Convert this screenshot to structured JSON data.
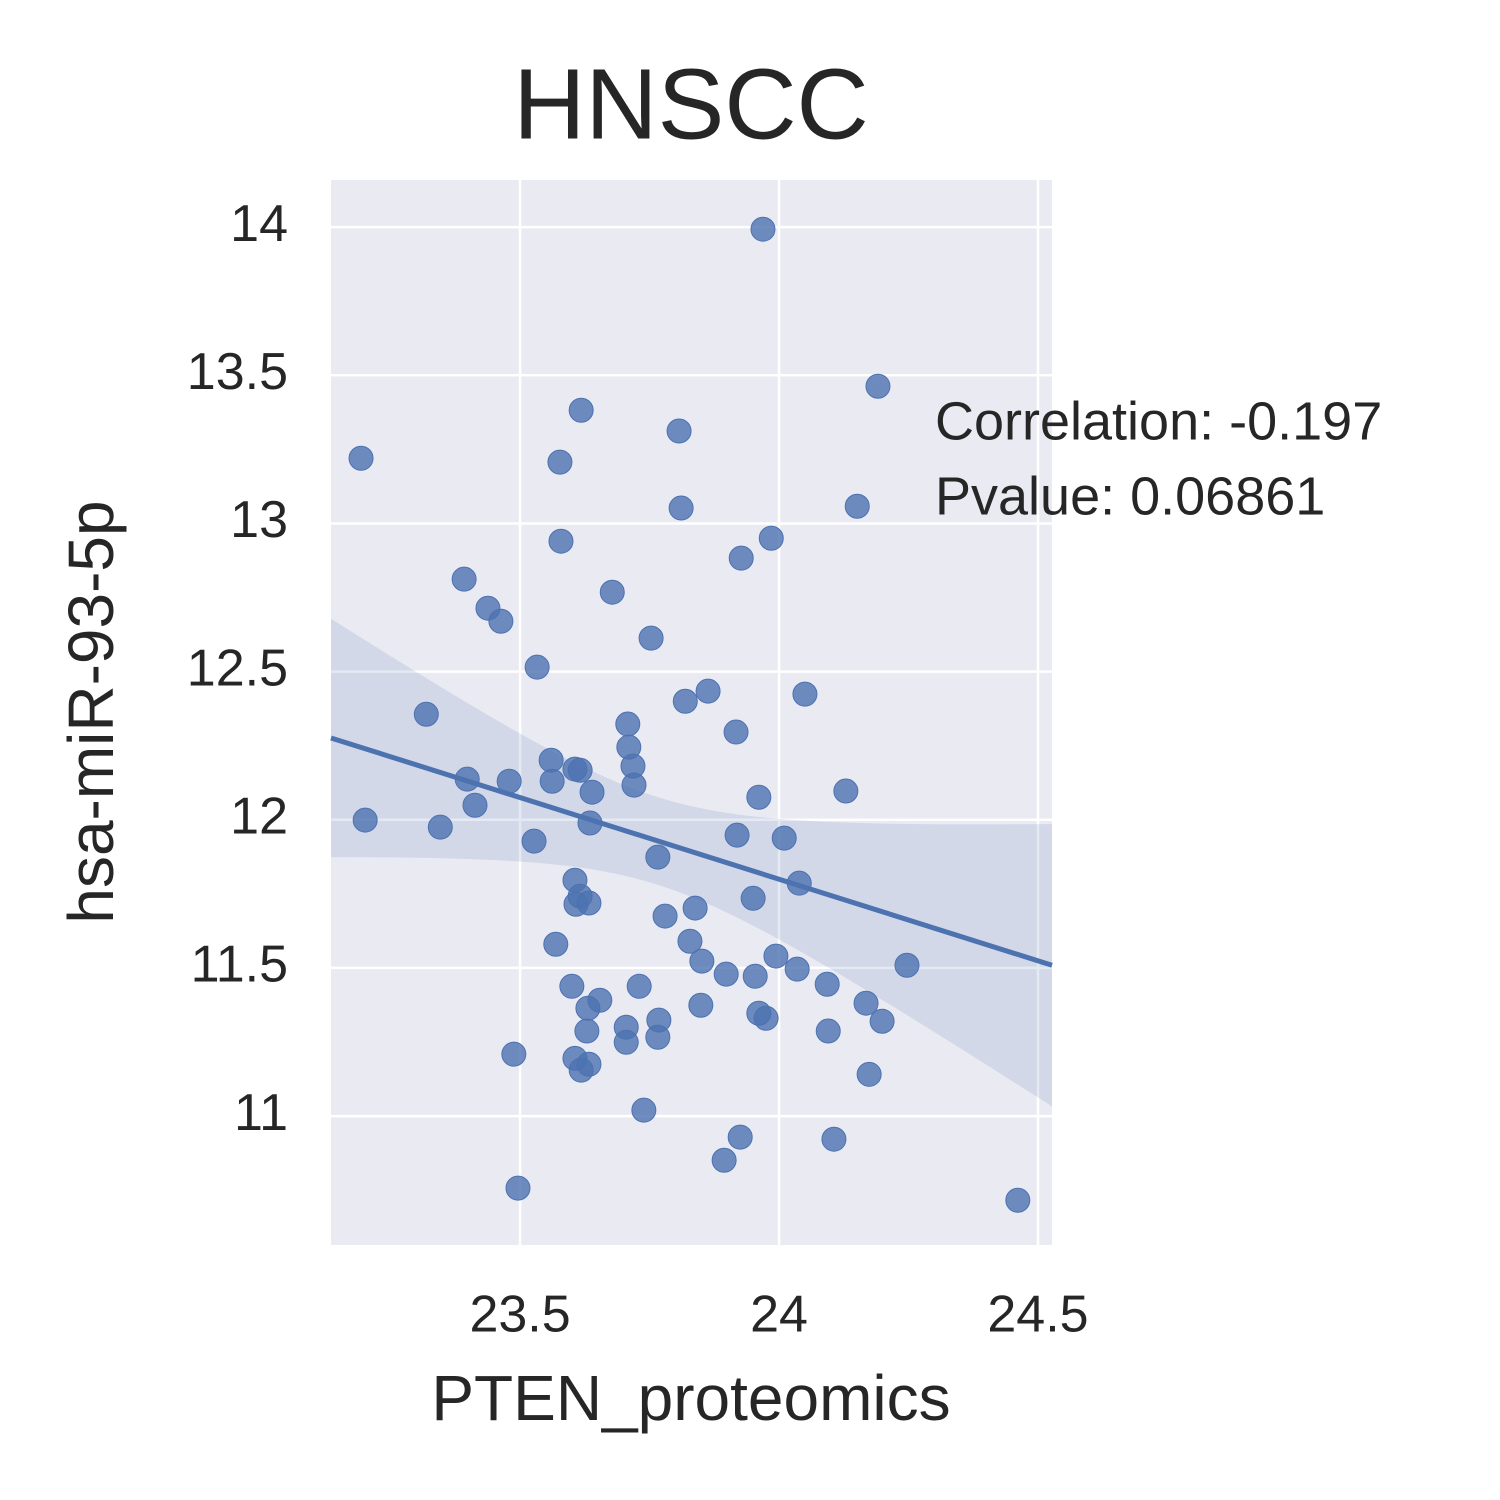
{
  "chart_data": {
    "type": "scatter",
    "title": "HNSCC",
    "x_label": "PTEN_proteomics",
    "y_label": "hsa-miR-93-5p",
    "annotations": [
      "Correlation: -0.197",
      "Pvalue: 0.06861"
    ],
    "color": "#4c72b0",
    "grid": true,
    "regression": true,
    "xlim": [
      23.135,
      24.527
    ],
    "ylim": [
      10.565,
      14.159
    ],
    "xticks": [
      23.5,
      24.0,
      24.5
    ],
    "yticks": [
      11.0,
      11.5,
      12.0,
      12.5,
      13.0,
      13.5,
      14.0
    ],
    "x": [
      23.969,
      24.191,
      23.618,
      23.193,
      23.807,
      23.577,
      23.811,
      24.151,
      23.579,
      23.985,
      23.927,
      23.392,
      23.438,
      23.463,
      23.678,
      23.753,
      23.533,
      23.319,
      23.863,
      23.819,
      24.05,
      23.708,
      23.917,
      23.71,
      23.56,
      23.606,
      23.616,
      23.718,
      23.398,
      23.479,
      23.562,
      23.72,
      23.639,
      23.961,
      24.129,
      23.413,
      23.201,
      23.346,
      23.635,
      23.527,
      23.919,
      24.01,
      23.766,
      23.606,
      24.039,
      23.616,
      23.608,
      23.633,
      23.95,
      23.838,
      23.78,
      23.569,
      23.828,
      23.851,
      23.898,
      23.954,
      23.994,
      24.035,
      24.247,
      23.6,
      23.73,
      24.093,
      23.654,
      23.631,
      23.849,
      24.168,
      23.768,
      23.961,
      23.975,
      24.199,
      23.705,
      23.629,
      24.095,
      23.705,
      23.766,
      23.488,
      23.606,
      23.633,
      23.618,
      24.174,
      23.739,
      23.925,
      24.106,
      23.894,
      23.496,
      24.461
    ],
    "values": [
      13.993,
      13.463,
      13.382,
      13.22,
      13.312,
      13.207,
      13.052,
      13.058,
      12.94,
      12.95,
      12.883,
      12.812,
      12.714,
      12.67,
      12.768,
      12.613,
      12.515,
      12.356,
      12.434,
      12.4,
      12.424,
      12.323,
      12.296,
      12.245,
      12.201,
      12.171,
      12.167,
      12.181,
      12.137,
      12.13,
      12.13,
      12.117,
      12.093,
      12.076,
      12.097,
      12.049,
      11.999,
      11.975,
      11.989,
      11.928,
      11.948,
      11.938,
      11.874,
      11.796,
      11.786,
      11.742,
      11.715,
      11.719,
      11.735,
      11.702,
      11.675,
      11.58,
      11.59,
      11.523,
      11.479,
      11.472,
      11.54,
      11.496,
      11.509,
      11.438,
      11.438,
      11.445,
      11.391,
      11.364,
      11.374,
      11.381,
      11.324,
      11.347,
      11.33,
      11.32,
      11.3,
      11.287,
      11.287,
      11.249,
      11.266,
      11.209,
      11.195,
      11.175,
      11.155,
      11.141,
      11.02,
      10.929,
      10.922,
      10.851,
      10.757,
      10.716
    ]
  }
}
